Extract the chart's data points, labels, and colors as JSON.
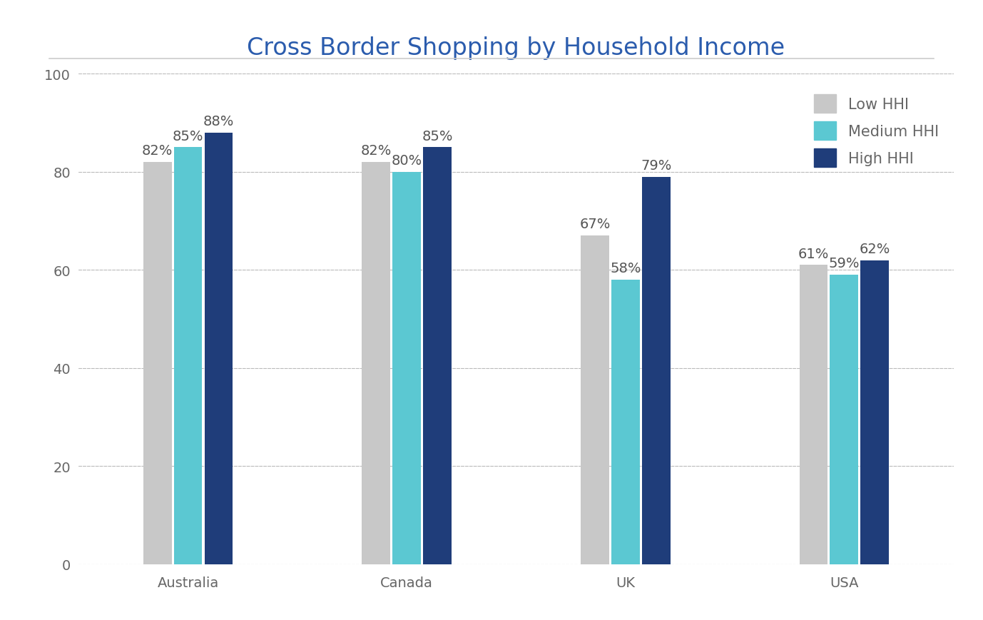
{
  "title": "Cross Border Shopping by Household Income",
  "categories": [
    "Australia",
    "Canada",
    "UK",
    "USA"
  ],
  "series": {
    "Low HHI": [
      82,
      82,
      67,
      61
    ],
    "Medium HHI": [
      85,
      80,
      58,
      59
    ],
    "High HHI": [
      88,
      85,
      79,
      62
    ]
  },
  "colors": {
    "Low HHI": "#c8c8c8",
    "Medium HHI": "#5bc8d2",
    "High HHI": "#1f3d7a"
  },
  "ylim": [
    0,
    100
  ],
  "yticks": [
    0,
    20,
    40,
    60,
    80,
    100
  ],
  "bar_width": 0.13,
  "title_color": "#2b5cad",
  "title_fontsize": 24,
  "tick_fontsize": 14,
  "legend_fontsize": 15,
  "value_fontsize": 14,
  "background_color": "#ffffff",
  "grid_color": "#bbbbbb",
  "axis_label_color": "#666666",
  "bar_label_color": "#555555",
  "separator_color": "#cccccc"
}
